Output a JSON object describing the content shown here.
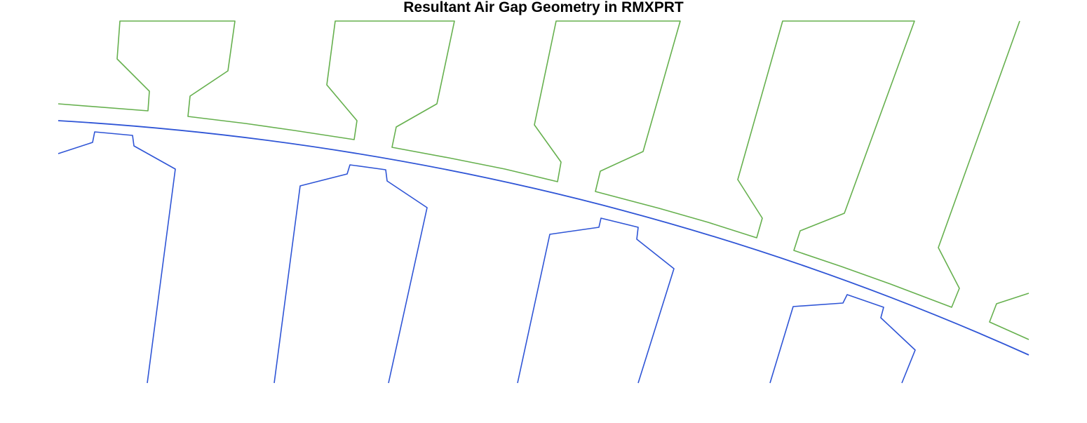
{
  "figure": {
    "title": "Resultant Air Gap Geometry in RMXPRT"
  },
  "colors": {
    "stator": "#66b04e",
    "rotor": "#2f55d6",
    "background": "#ffffff",
    "title": "#000000"
  }
}
